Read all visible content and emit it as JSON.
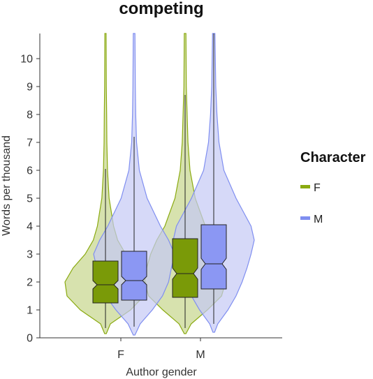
{
  "chart_data": {
    "type": "violin",
    "title": "competing",
    "xlabel": "Author gender",
    "ylabel": "Words per thousand",
    "categories": [
      "F",
      "M"
    ],
    "ylim": [
      0,
      10.9
    ],
    "yticks": [
      0,
      1,
      2,
      3,
      4,
      5,
      6,
      7,
      8,
      9,
      10
    ],
    "grid": false,
    "legend": {
      "title": "Character",
      "position": "right"
    },
    "series": [
      {
        "name": "F",
        "color": "#8aaa10",
        "fill": "#c6d68c",
        "box_fill": "#7a9a08",
        "groups": [
          {
            "category": "F",
            "min": 0.35,
            "q1": 1.25,
            "median": 1.9,
            "q3": 2.75,
            "max": 6.05,
            "notch": [
              1.75,
              2.05
            ],
            "density": [
              [
                0.15,
                0.02
              ],
              [
                0.5,
                0.12
              ],
              [
                1.0,
                0.62
              ],
              [
                1.5,
                0.95
              ],
              [
                2.0,
                1.0
              ],
              [
                2.5,
                0.8
              ],
              [
                3.0,
                0.5
              ],
              [
                3.5,
                0.3
              ],
              [
                4.0,
                0.2
              ],
              [
                5.0,
                0.09
              ],
              [
                6.0,
                0.05
              ],
              [
                7.0,
                0.035
              ],
              [
                8.0,
                0.03
              ],
              [
                9.0,
                0.02
              ],
              [
                10.9,
                0.015
              ]
            ]
          },
          {
            "category": "M",
            "min": 0.35,
            "q1": 1.45,
            "median": 2.3,
            "q3": 3.55,
            "max": 8.7,
            "notch": [
              2.1,
              2.5
            ],
            "density": [
              [
                0.15,
                0.02
              ],
              [
                0.5,
                0.15
              ],
              [
                1.0,
                0.55
              ],
              [
                1.5,
                0.9
              ],
              [
                2.0,
                1.0
              ],
              [
                2.5,
                0.95
              ],
              [
                3.0,
                0.85
              ],
              [
                3.5,
                0.7
              ],
              [
                4.0,
                0.5
              ],
              [
                5.0,
                0.25
              ],
              [
                6.0,
                0.12
              ],
              [
                7.0,
                0.07
              ],
              [
                8.0,
                0.05
              ],
              [
                9.0,
                0.03
              ],
              [
                10.9,
                0.02
              ]
            ]
          }
        ]
      },
      {
        "name": "M",
        "color": "#7f8ef0",
        "fill": "#c4c9f5",
        "box_fill": "#8b97f3",
        "groups": [
          {
            "category": "F",
            "min": 0.4,
            "q1": 1.35,
            "median": 2.05,
            "q3": 3.1,
            "max": 7.2,
            "notch": [
              1.9,
              2.2
            ],
            "density": [
              [
                0.1,
                0.02
              ],
              [
                0.5,
                0.15
              ],
              [
                1.0,
                0.45
              ],
              [
                1.5,
                0.7
              ],
              [
                2.0,
                0.85
              ],
              [
                2.5,
                0.92
              ],
              [
                3.0,
                1.0
              ],
              [
                3.5,
                0.85
              ],
              [
                4.0,
                0.65
              ],
              [
                5.0,
                0.32
              ],
              [
                6.0,
                0.13
              ],
              [
                7.0,
                0.06
              ],
              [
                8.0,
                0.04
              ],
              [
                9.0,
                0.03
              ],
              [
                10.9,
                0.02
              ]
            ]
          },
          {
            "category": "M",
            "min": 0.5,
            "q1": 1.75,
            "median": 2.65,
            "q3": 4.05,
            "max": 10.9,
            "notch": [
              2.45,
              2.85
            ],
            "density": [
              [
                0.2,
                0.02
              ],
              [
                0.5,
                0.1
              ],
              [
                1.0,
                0.35
              ],
              [
                1.5,
                0.55
              ],
              [
                2.0,
                0.7
              ],
              [
                2.5,
                0.82
              ],
              [
                3.0,
                0.92
              ],
              [
                3.5,
                1.0
              ],
              [
                4.0,
                0.92
              ],
              [
                5.0,
                0.55
              ],
              [
                6.0,
                0.25
              ],
              [
                7.0,
                0.13
              ],
              [
                8.0,
                0.08
              ],
              [
                9.0,
                0.05
              ],
              [
                10.9,
                0.03
              ]
            ]
          }
        ]
      }
    ]
  }
}
